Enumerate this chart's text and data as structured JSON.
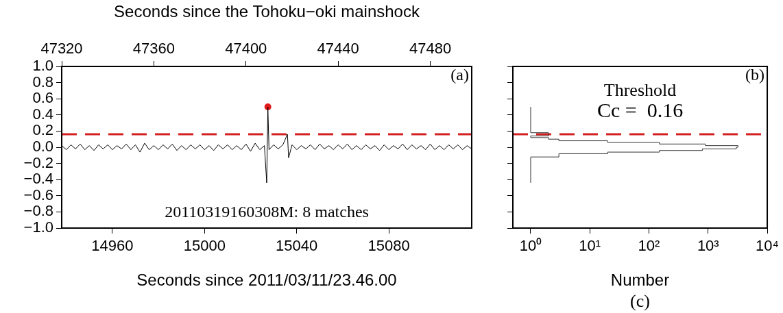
{
  "chart_data": [
    {
      "type": "line",
      "x2label": "Seconds since the Tohoku−oki mainshock",
      "xlabel": "Seconds since 2011/03/11/23.46.00",
      "xlim": [
        14938,
        15116
      ],
      "xticks": [
        14960,
        15000,
        15040,
        15080
      ],
      "x2lim": [
        47320,
        47498
      ],
      "x2ticks": [
        47320,
        47360,
        47400,
        47440,
        47480
      ],
      "ylim": [
        -1,
        1
      ],
      "yticks": [
        {
          "value": -1,
          "label": "−1.0"
        },
        {
          "value": -0.8,
          "label": "−0.8"
        },
        {
          "value": -0.6,
          "label": "−0.6"
        },
        {
          "value": -0.4,
          "label": "−0.4"
        },
        {
          "value": -0.2,
          "label": "−0.2"
        },
        {
          "value": 0,
          "label": "0.0"
        },
        {
          "value": 0.2,
          "label": "0.2"
        },
        {
          "value": 0.4,
          "label": "0.4"
        },
        {
          "value": 0.6,
          "label": "0.6"
        },
        {
          "value": 0.8,
          "label": "0.8"
        },
        {
          "value": 1,
          "label": "1.0"
        }
      ],
      "x": [
        14938,
        14940,
        14942,
        14944,
        14946,
        14948,
        14950,
        14952,
        14954,
        14956,
        14958,
        14960,
        14962,
        14964,
        14966,
        14968,
        14970,
        14972,
        14974,
        14976,
        14978,
        14980,
        14982,
        14984,
        14986,
        14988,
        14990,
        14992,
        14994,
        14996,
        14998,
        15000,
        15002,
        15004,
        15006,
        15008,
        15010,
        15012,
        15014,
        15016,
        15018,
        15020,
        15022,
        15024,
        15026,
        15027,
        15027.5,
        15028,
        15030,
        15032,
        15034,
        15036,
        15036.5,
        15038,
        15040,
        15042,
        15044,
        15046,
        15048,
        15050,
        15052,
        15054,
        15056,
        15058,
        15060,
        15062,
        15064,
        15066,
        15068,
        15070,
        15072,
        15074,
        15076,
        15078,
        15080,
        15082,
        15084,
        15086,
        15088,
        15090,
        15092,
        15094,
        15096,
        15098,
        15100,
        15102,
        15104,
        15106,
        15108,
        15110,
        15112,
        15114,
        15116
      ],
      "series": [
        {
          "color": "#000000",
          "marker": "none",
          "values": [
            0.02,
            -0.03,
            0.03,
            -0.02,
            0.04,
            -0.03,
            0.02,
            -0.04,
            0.03,
            -0.02,
            0.03,
            -0.03,
            0.02,
            -0.02,
            0.04,
            -0.03,
            0.03,
            -0.06,
            0.05,
            -0.03,
            0.02,
            -0.03,
            0.03,
            -0.02,
            0.04,
            -0.04,
            0.02,
            -0.03,
            0.03,
            -0.02,
            0.03,
            -0.03,
            0.02,
            -0.04,
            0.03,
            -0.02,
            0.03,
            -0.03,
            0.02,
            -0.03,
            0.04,
            -0.05,
            0.05,
            -0.03,
            0.02,
            -0.44,
            0.5,
            -0.03,
            0.03,
            -0.02,
            0.03,
            0.16,
            -0.13,
            0.03,
            -0.03,
            0.02,
            -0.02,
            0.03,
            -0.03,
            0.04,
            -0.02,
            0.02,
            -0.03,
            0.03,
            -0.02,
            0.04,
            -0.03,
            0.02,
            -0.03,
            0.03,
            -0.02,
            0.02,
            -0.04,
            0.03,
            -0.03,
            0.02,
            -0.02,
            0.04,
            -0.03,
            0.03,
            -0.02,
            0.02,
            -0.03,
            0.04,
            -0.03,
            0.02,
            -0.03,
            0.03,
            -0.02,
            0.03,
            -0.03,
            0.02,
            -0.02
          ]
        },
        {
          "type": "scatter",
          "color": "#e31a1c",
          "marker": "circle",
          "x": [
            15027.5
          ],
          "values": [
            0.5
          ]
        }
      ],
      "ref_lines": [
        {
          "axis": "y",
          "value": 0.16,
          "color": "#d42020",
          "line_style": "dashed"
        }
      ],
      "annotations": [
        "(a)",
        "20110319160308M: 8 matches"
      ],
      "grid": false,
      "legend": false
    },
    {
      "type": "histogram",
      "orientation": "horizontal",
      "log": "x",
      "xlabel": "Number",
      "xlim": [
        0.5,
        10000
      ],
      "xticks": [
        {
          "value": 1,
          "label": "10⁰"
        },
        {
          "value": 10,
          "label": "10¹"
        },
        {
          "value": 100,
          "label": "10²"
        },
        {
          "value": 1000,
          "label": "10³"
        },
        {
          "value": 10000,
          "label": "10⁴"
        }
      ],
      "ylim": [
        -1,
        1
      ],
      "yticks": [
        {
          "value": -1,
          "label": null
        },
        {
          "value": -0.8,
          "label": null
        },
        {
          "value": -0.6,
          "label": null
        },
        {
          "value": -0.4,
          "label": null
        },
        {
          "value": -0.2,
          "label": null
        },
        {
          "value": 0,
          "label": null
        },
        {
          "value": 0.2,
          "label": null
        },
        {
          "value": 0.4,
          "label": null
        },
        {
          "value": 0.6,
          "label": null
        },
        {
          "value": 0.8,
          "label": null
        },
        {
          "value": 1,
          "label": null
        }
      ],
      "tick_labels": "x",
      "bins": [
        -0.44,
        -0.42,
        -0.4,
        -0.38,
        -0.36,
        -0.34,
        -0.32,
        -0.3,
        -0.28,
        -0.26,
        -0.24,
        -0.22,
        -0.2,
        -0.18,
        -0.16,
        -0.14,
        -0.12,
        -0.1,
        -0.08,
        -0.06,
        -0.04,
        -0.02,
        0,
        0.02,
        0.04,
        0.06,
        0.08,
        0.1,
        0.12,
        0.14,
        0.16,
        0.18,
        0.2,
        0.22,
        0.24,
        0.26,
        0.28,
        0.3,
        0.32,
        0.34,
        0.36,
        0.38,
        0.4,
        0.42,
        0.44,
        0.46,
        0.48,
        0.5
      ],
      "values": [
        1,
        1,
        1,
        1,
        1,
        1,
        1,
        1,
        1,
        1,
        1,
        1,
        1,
        1,
        1,
        1,
        3,
        3,
        20,
        150,
        800,
        3000,
        3200,
        900,
        150,
        20,
        3,
        2,
        1,
        2,
        2,
        1,
        1,
        1,
        1,
        1,
        1,
        1,
        1,
        1,
        1,
        1,
        1,
        1,
        1,
        1,
        1
      ],
      "color": "#333333",
      "ref_lines": [
        {
          "axis": "y",
          "value": 0.16,
          "color": "#d42020",
          "line_style": "dashed"
        }
      ],
      "annotations": [
        "(b)",
        "Threshold",
        "Cc =  0.16",
        "(c)"
      ],
      "grid": false,
      "legend": false
    }
  ]
}
